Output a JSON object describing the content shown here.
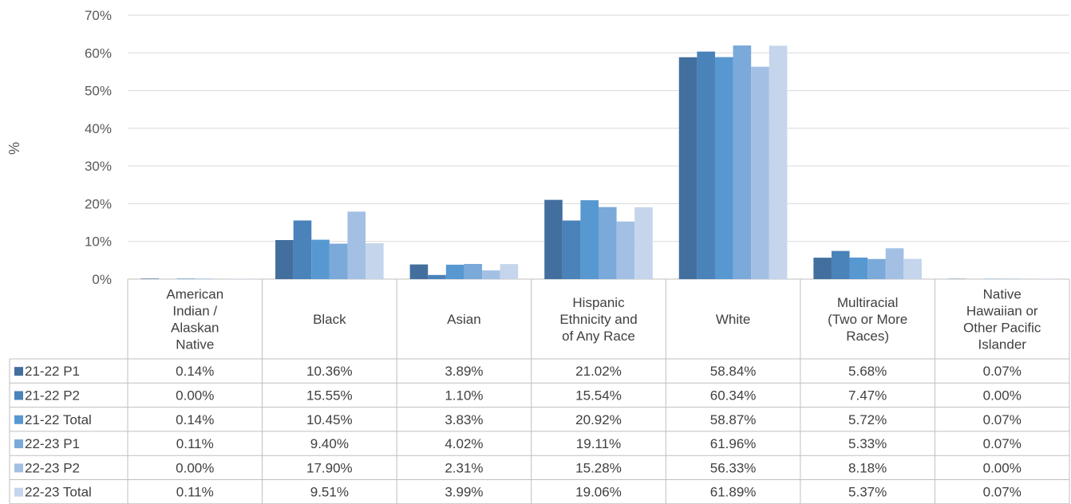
{
  "chart_data": {
    "type": "bar",
    "ylabel": "%",
    "ylim": [
      0,
      70
    ],
    "yticks": [
      "0%",
      "10%",
      "20%",
      "30%",
      "40%",
      "50%",
      "60%",
      "70%"
    ],
    "grid": true,
    "legend": "data-table",
    "categories": [
      [
        "American",
        "Indian /",
        "Alaskan",
        "Native"
      ],
      [
        "Black"
      ],
      [
        "Asian"
      ],
      [
        "Hispanic",
        "Ethnicity and",
        "of Any Race"
      ],
      [
        "White"
      ],
      [
        "Multiracial",
        "(Two or More",
        "Races)"
      ],
      [
        "Native",
        "Hawaiian or",
        "Other Pacific",
        "Islander"
      ]
    ],
    "series": [
      {
        "name": "21-22 P1",
        "color": "#426f9e",
        "values": [
          0.14,
          10.36,
          3.89,
          21.02,
          58.84,
          5.68,
          0.07
        ],
        "labels": [
          "0.14%",
          "10.36%",
          "3.89%",
          "21.02%",
          "58.84%",
          "5.68%",
          "0.07%"
        ]
      },
      {
        "name": "21-22 P2",
        "color": "#4a82ba",
        "values": [
          0.0,
          15.55,
          1.1,
          15.54,
          60.34,
          7.47,
          0.0
        ],
        "labels": [
          "0.00%",
          "15.55%",
          "1.10%",
          "15.54%",
          "60.34%",
          "7.47%",
          "0.00%"
        ]
      },
      {
        "name": "21-22 Total",
        "color": "#5898d1",
        "values": [
          0.14,
          10.45,
          3.83,
          20.92,
          58.87,
          5.72,
          0.07
        ],
        "labels": [
          "0.14%",
          "10.45%",
          "3.83%",
          "20.92%",
          "58.87%",
          "5.72%",
          "0.07%"
        ]
      },
      {
        "name": "22-23 P1",
        "color": "#7aa9da",
        "values": [
          0.11,
          9.4,
          4.02,
          19.11,
          61.96,
          5.33,
          0.07
        ],
        "labels": [
          "0.11%",
          "9.40%",
          "4.02%",
          "19.11%",
          "61.96%",
          "5.33%",
          "0.07%"
        ]
      },
      {
        "name": "22-23 P2",
        "color": "#a3c0e4",
        "values": [
          0.0,
          17.9,
          2.31,
          15.28,
          56.33,
          8.18,
          0.0
        ],
        "labels": [
          "0.00%",
          "17.90%",
          "2.31%",
          "15.28%",
          "56.33%",
          "8.18%",
          "0.00%"
        ]
      },
      {
        "name": "22-23 Total",
        "color": "#c4d5ec",
        "values": [
          0.11,
          9.51,
          3.99,
          19.06,
          61.89,
          5.37,
          0.07
        ],
        "labels": [
          "0.11%",
          "9.51%",
          "3.99%",
          "19.06%",
          "61.89%",
          "5.37%",
          "0.07%"
        ]
      }
    ]
  }
}
